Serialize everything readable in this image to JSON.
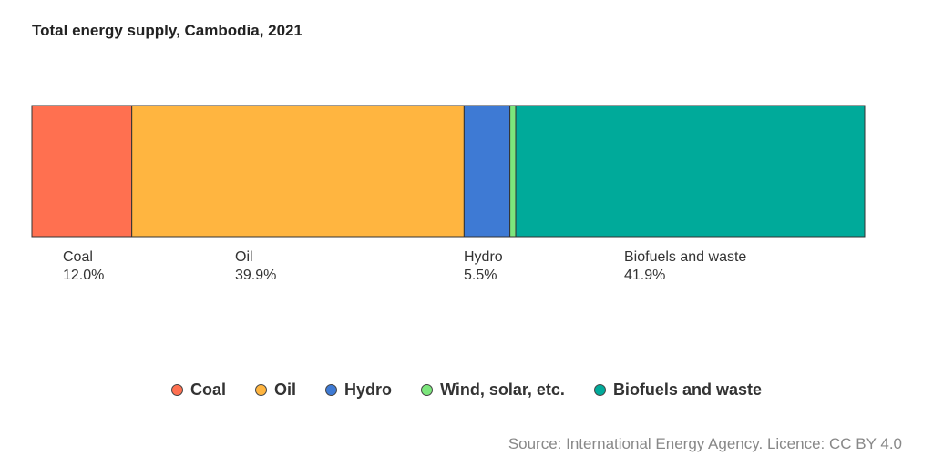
{
  "chart_data": {
    "type": "bar",
    "orientation": "horizontal-stacked-100",
    "title": "Total energy supply, Cambodia, 2021",
    "categories": [
      "Total energy supply"
    ],
    "series": [
      {
        "name": "Coal",
        "value": 12.0,
        "label": "12.0%",
        "color": "#FF7050"
      },
      {
        "name": "Oil",
        "value": 39.9,
        "label": "39.9%",
        "color": "#FFB540"
      },
      {
        "name": "Hydro",
        "value": 5.5,
        "label": "5.5%",
        "color": "#3E7AD4"
      },
      {
        "name": "Wind, solar, etc.",
        "value": 0.7,
        "label": "",
        "color": "#7CE67C"
      },
      {
        "name": "Biofuels and waste",
        "value": 41.9,
        "label": "41.9%",
        "color": "#00AA9A"
      }
    ],
    "unit": "%",
    "legend_position": "bottom"
  },
  "source": "Source: International Energy Agency. Licence: CC BY 4.0"
}
